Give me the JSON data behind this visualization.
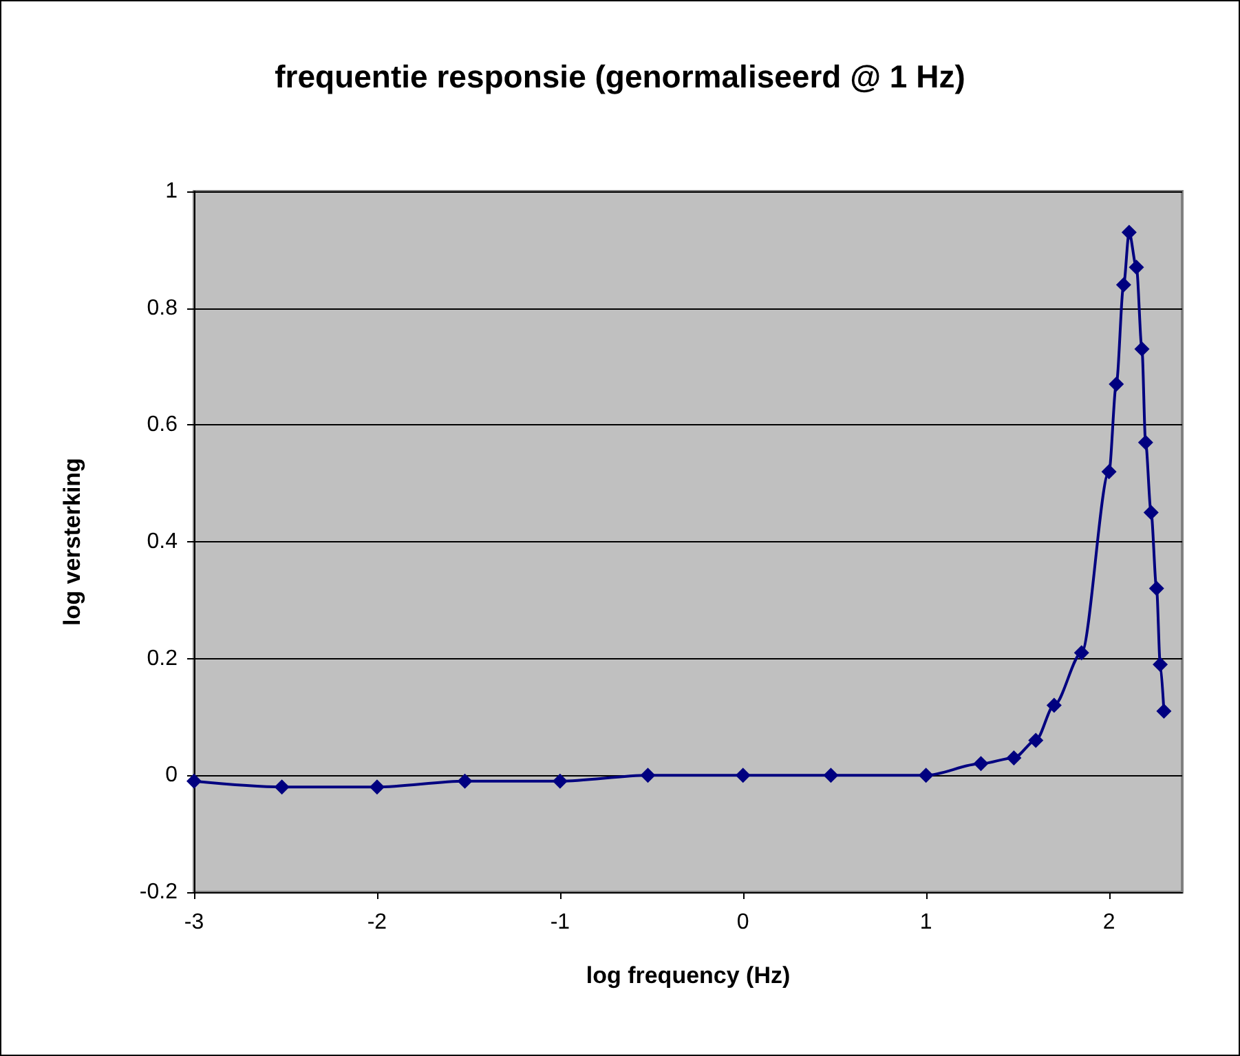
{
  "chart_data": {
    "type": "line",
    "title": "frequentie responsie (genormaliseerd @ 1 Hz)",
    "xlabel": "log frequency (Hz)",
    "ylabel": "log versterking",
    "x": [
      -3,
      -2.52,
      -2,
      -1.52,
      -1,
      -0.52,
      0,
      0.48,
      1,
      1.3,
      1.48,
      1.6,
      1.7,
      1.85,
      2.0,
      2.04,
      2.08,
      2.11,
      2.15,
      2.18,
      2.2,
      2.23,
      2.26,
      2.28,
      2.3
    ],
    "series": [
      {
        "color": "#000080",
        "values": [
          -0.01,
          -0.02,
          -0.02,
          -0.01,
          -0.01,
          0,
          0,
          0,
          0,
          0.02,
          0.03,
          0.06,
          0.12,
          0.21,
          0.52,
          0.67,
          0.84,
          0.93,
          0.87,
          0.73,
          0.57,
          0.45,
          0.32,
          0.19,
          0.11
        ]
      }
    ],
    "xlim": [
      -3,
      2.4
    ],
    "xticks": [
      -3,
      -2,
      -1,
      0,
      1,
      2
    ],
    "ylim": [
      -0.2,
      1
    ],
    "yticks": [
      -0.2,
      0,
      0.2,
      0.4,
      0.6,
      0.8,
      1
    ],
    "grid": "y",
    "marker": "diamond",
    "line_style": "solid"
  }
}
